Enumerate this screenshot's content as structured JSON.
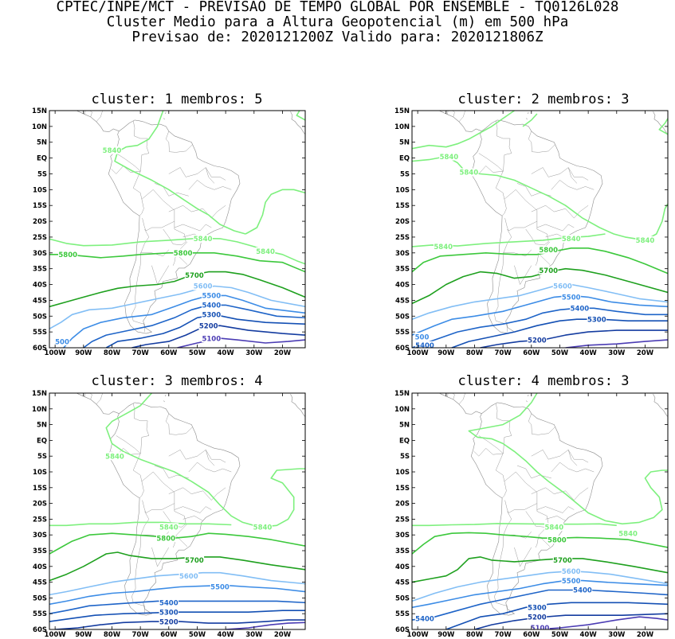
{
  "header": {
    "line1": "CPTEC/INPE/MCT - PREVISAO DE TEMPO GLOBAL POR ENSEMBLE - TQ0126L028",
    "line2": "Cluster Medio para a Altura Geopotencial (m) em 500 hPa",
    "line3": "Previsao de: 2020121200Z   Valido para: 2020121806Z"
  },
  "axes": {
    "lat_labels": [
      "15N",
      "10N",
      "5N",
      "EQ",
      "5S",
      "10S",
      "15S",
      "20S",
      "25S",
      "30S",
      "35S",
      "40S",
      "45S",
      "50S",
      "55S",
      "60S"
    ],
    "lon_labels": [
      "100W",
      "90W",
      "80W",
      "70W",
      "60W",
      "50W",
      "40W",
      "30W",
      "20W"
    ]
  },
  "colors": {
    "c5840": "#7ef07e",
    "c5800": "#3cc83c",
    "c5700": "#1ea01e",
    "c5600": "#82bef5",
    "c5500": "#3c8ce6",
    "c5400": "#1e64c8",
    "c5300": "#1450b4",
    "c5200": "#143ca0",
    "c5100": "#4b3cb4",
    "coast": "#8c8c8c"
  },
  "panels": [
    {
      "title": "cluster: 1   membros: 5",
      "contour_labels": [
        {
          "text": "5840",
          "lon": -95.5,
          "lat": -30.5,
          "color": "c5840"
        },
        {
          "text": "5840",
          "lon": -48,
          "lat": -25.5,
          "color": "c5840"
        },
        {
          "text": "5840",
          "lon": -80,
          "lat": 2.5,
          "color": "c5840"
        },
        {
          "text": "5840",
          "lon": -26,
          "lat": -29.5,
          "color": "c5840"
        },
        {
          "text": "5800",
          "lon": -95.5,
          "lat": -30.5,
          "color": "c5800"
        },
        {
          "text": "5800",
          "lon": -55,
          "lat": -30,
          "color": "c5800"
        },
        {
          "text": "5700",
          "lon": -51,
          "lat": -37,
          "color": "c5700"
        },
        {
          "text": "5600",
          "lon": -48,
          "lat": -40.5,
          "color": "c5600"
        },
        {
          "text": "5500",
          "lon": -45,
          "lat": -43.5,
          "color": "c5500"
        },
        {
          "text": "5400",
          "lon": -45,
          "lat": -46.5,
          "color": "c5400"
        },
        {
          "text": "5300",
          "lon": -45,
          "lat": -49.5,
          "color": "c5300"
        },
        {
          "text": "5200",
          "lon": -46,
          "lat": -53,
          "color": "c5200"
        },
        {
          "text": "5100",
          "lon": -45,
          "lat": -57,
          "color": "c5100"
        },
        {
          "text": "500",
          "lon": -97.5,
          "lat": -58,
          "color": "c5500"
        }
      ]
    },
    {
      "title": "cluster: 2   membros: 3",
      "contour_labels": [
        {
          "text": "5840",
          "lon": -89,
          "lat": 0.5,
          "color": "c5840"
        },
        {
          "text": "5840",
          "lon": -82,
          "lat": -4.5,
          "color": "c5840"
        },
        {
          "text": "5840",
          "lon": -91,
          "lat": -28,
          "color": "c5840"
        },
        {
          "text": "5840",
          "lon": -46,
          "lat": -25.5,
          "color": "c5840"
        },
        {
          "text": "5840",
          "lon": -20,
          "lat": -26,
          "color": "c5840"
        },
        {
          "text": "5800",
          "lon": -54,
          "lat": -29,
          "color": "c5800"
        },
        {
          "text": "5700",
          "lon": -54,
          "lat": -35.5,
          "color": "c5700"
        },
        {
          "text": "5600",
          "lon": -49,
          "lat": -40.5,
          "color": "c5600"
        },
        {
          "text": "5500",
          "lon": -46,
          "lat": -44,
          "color": "c5500"
        },
        {
          "text": "5400",
          "lon": -43,
          "lat": -47.5,
          "color": "c5400"
        },
        {
          "text": "5300",
          "lon": -37,
          "lat": -51,
          "color": "c5300"
        },
        {
          "text": "5200",
          "lon": -58,
          "lat": -57.5,
          "color": "c5200"
        },
        {
          "text": "500",
          "lon": -98.5,
          "lat": -56.5,
          "color": "c5500"
        },
        {
          "text": "5400",
          "lon": -97.5,
          "lat": -59.2,
          "color": "c5400"
        }
      ]
    },
    {
      "title": "cluster: 3   membros: 4",
      "contour_labels": [
        {
          "text": "5840",
          "lon": -79,
          "lat": -5,
          "color": "c5840"
        },
        {
          "text": "5840",
          "lon": -60,
          "lat": -27.5,
          "color": "c5840"
        },
        {
          "text": "5840",
          "lon": -27,
          "lat": -27.5,
          "color": "c5840"
        },
        {
          "text": "5800",
          "lon": -61,
          "lat": -31,
          "color": "c5800"
        },
        {
          "text": "5700",
          "lon": -51,
          "lat": -38,
          "color": "c5700"
        },
        {
          "text": "5600",
          "lon": -53,
          "lat": -43,
          "color": "c5600"
        },
        {
          "text": "5500",
          "lon": -42,
          "lat": -46.5,
          "color": "c5500"
        },
        {
          "text": "5400",
          "lon": -60,
          "lat": -51.5,
          "color": "c5400"
        },
        {
          "text": "5300",
          "lon": -60,
          "lat": -54.5,
          "color": "c5300"
        },
        {
          "text": "5200",
          "lon": -60,
          "lat": -57.5,
          "color": "c5200"
        }
      ]
    },
    {
      "title": "cluster: 4   membros: 3",
      "contour_labels": [
        {
          "text": "5840",
          "lon": -52,
          "lat": -27.5,
          "color": "c5840"
        },
        {
          "text": "5840",
          "lon": -26,
          "lat": -29.5,
          "color": "c5840"
        },
        {
          "text": "5800",
          "lon": -51,
          "lat": -31.5,
          "color": "c5800"
        },
        {
          "text": "5700",
          "lon": -49,
          "lat": -38,
          "color": "c5700"
        },
        {
          "text": "5600",
          "lon": -46,
          "lat": -41.5,
          "color": "c5600"
        },
        {
          "text": "5500",
          "lon": -46,
          "lat": -44.5,
          "color": "c5500"
        },
        {
          "text": "5400",
          "lon": -42,
          "lat": -47.5,
          "color": "c5400"
        },
        {
          "text": "5300",
          "lon": -58,
          "lat": -53,
          "color": "c5300"
        },
        {
          "text": "5200",
          "lon": -58,
          "lat": -56,
          "color": "c5200"
        },
        {
          "text": "5400",
          "lon": -97.5,
          "lat": -56.5,
          "color": "c5400"
        },
        {
          "text": "5100",
          "lon": -57,
          "lat": -59.5,
          "color": "c5100"
        }
      ]
    }
  ]
}
